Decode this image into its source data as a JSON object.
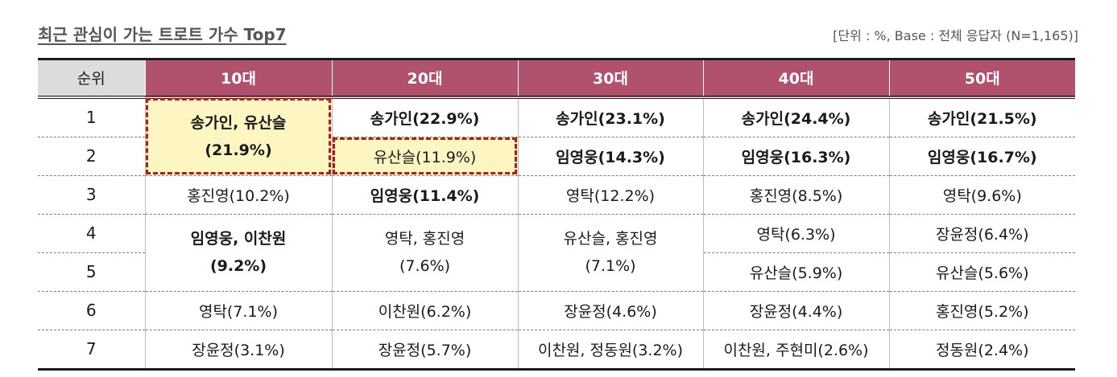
{
  "title": "최근 관심이 가는 트로트 가수 Top7",
  "unit_note": "[단위 : %, Base : 전체 응답자 (N=1,165)]",
  "headers": [
    "순위",
    "10대",
    "20대",
    "30대",
    "40대",
    "50대"
  ],
  "ranks": [
    "1",
    "2",
    "3",
    "4",
    "5",
    "6",
    "7"
  ],
  "cells": {
    "r1": {
      "c10_merged_12": "송가인, 유산슬",
      "c10_merged_12_pct": "(21.9%)",
      "c20": "송가인(22.9%)",
      "c30": "송가인(23.1%)",
      "c40": "송가인(24.4%)",
      "c50": "송가인(21.5%)"
    },
    "r2": {
      "c20": "유산슬(11.9%)",
      "c30": "임영웅(14.3%)",
      "c40": "임영웅(16.3%)",
      "c50": "임영웅(16.7%)"
    },
    "r3": {
      "c10": "홍진영(10.2%)",
      "c20": "임영웅(11.4%)",
      "c30": "영탁(12.2%)",
      "c40": "홍진영(8.5%)",
      "c50": "영탁(9.6%)"
    },
    "r4": {
      "c10_merged_45": "임영웅, 이찬원",
      "c10_merged_45_pct": "(9.2%)",
      "c20_merged_45": "영탁, 홍진영",
      "c20_merged_45_pct": "(7.6%)",
      "c30_merged_45": "유산슬, 홍진영",
      "c30_merged_45_pct": "(7.1%)",
      "c40": "영탁(6.3%)",
      "c50": "장윤정(6.4%)"
    },
    "r5": {
      "c40": "유산슬(5.9%)",
      "c50": "유산슬(5.6%)"
    },
    "r6": {
      "c10": "영탁(7.1%)",
      "c20": "이찬원(6.2%)",
      "c30": "장윤정(4.6%)",
      "c40": "장윤정(4.4%)",
      "c50": "홍진영(5.2%)"
    },
    "r7": {
      "c10": "장윤정(3.1%)",
      "c20": "장윤정(5.7%)",
      "c30": "이찬원, 정동원(3.2%)",
      "c40": "이찬원, 주현미(2.6%)",
      "c50": "정동원(2.4%)"
    }
  },
  "colors": {
    "header_bg": "#b0516e",
    "rank_header_bg": "#dcdcdc",
    "highlight_bg": "#fdf6c3",
    "highlight_border": "#b01c1c"
  }
}
